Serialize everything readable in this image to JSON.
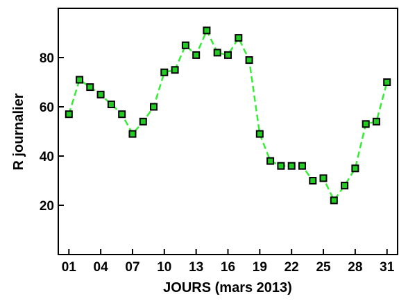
{
  "chart_data": {
    "type": "line",
    "title": "",
    "xlabel": "JOURS (mars 2013)",
    "ylabel": "R journalier",
    "x": [
      1,
      2,
      3,
      4,
      5,
      6,
      7,
      8,
      9,
      10,
      11,
      12,
      13,
      14,
      15,
      16,
      17,
      18,
      19,
      20,
      21,
      22,
      23,
      24,
      25,
      26,
      27,
      28,
      29,
      30,
      31
    ],
    "xticks": [
      1,
      4,
      7,
      10,
      13,
      16,
      19,
      22,
      25,
      28,
      31
    ],
    "xtick_labels": [
      "01",
      "04",
      "07",
      "10",
      "13",
      "16",
      "19",
      "22",
      "25",
      "28",
      "31"
    ],
    "yticks": [
      20,
      40,
      60,
      80
    ],
    "xlim": [
      0,
      32
    ],
    "ylim": [
      0,
      100
    ],
    "grid": false,
    "legend": "none",
    "series": [
      {
        "values": [
          57,
          71,
          68,
          65,
          61,
          57,
          49,
          54,
          60,
          74,
          75,
          85,
          81,
          91,
          82,
          81,
          88,
          79,
          49,
          38,
          36,
          36,
          36,
          30,
          31,
          22,
          28,
          35,
          53,
          54,
          70
        ],
        "line_color": "#33ee33",
        "marker_color": "#22cc22",
        "marker_edge": "#000000"
      }
    ]
  }
}
